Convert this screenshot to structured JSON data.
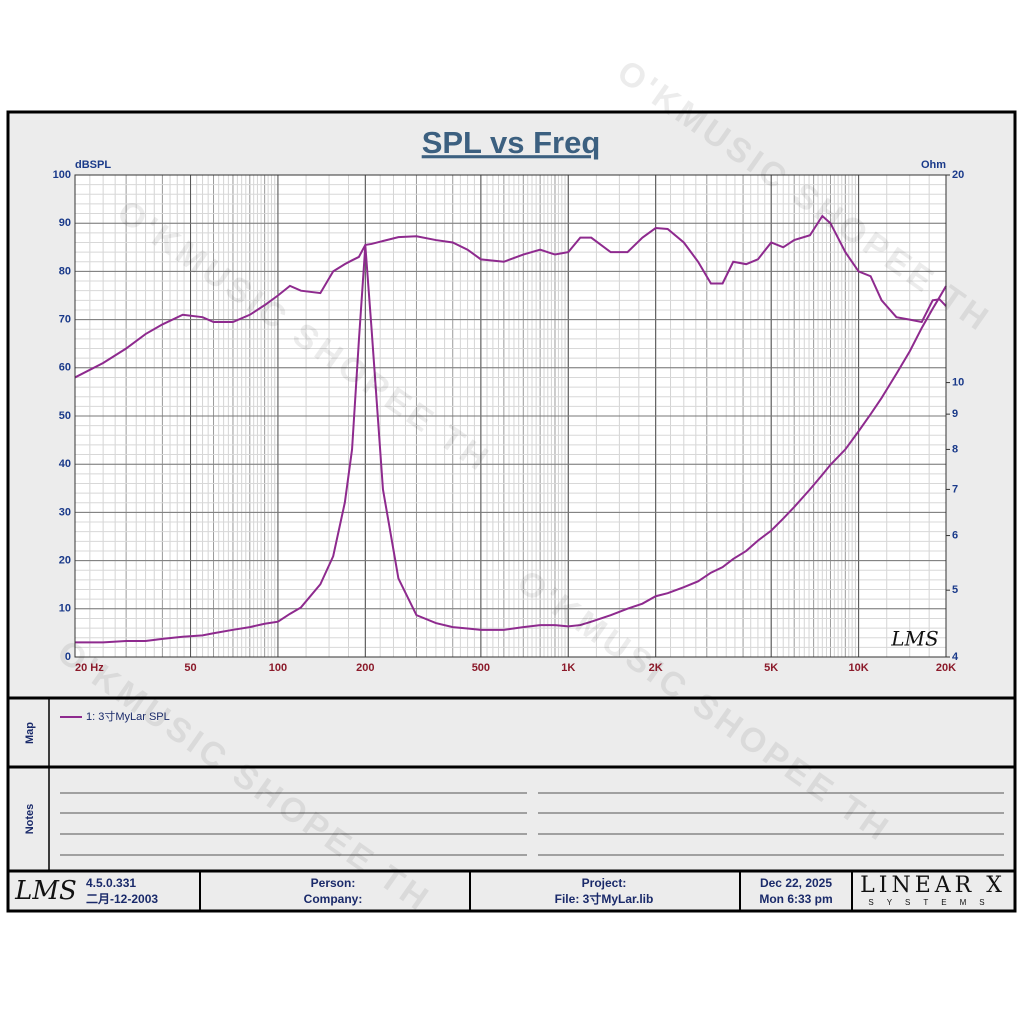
{
  "chart_data": {
    "type": "line",
    "title": "SPL vs Freq",
    "y_label": "dBSPL",
    "y2_label": "Ohm",
    "xlog": true,
    "y2log": true,
    "grid": true,
    "xlim": [
      20,
      20000
    ],
    "ylim": [
      0,
      100
    ],
    "y2lim": [
      4,
      20
    ],
    "xticks": [
      {
        "value": 20,
        "label": "20  Hz"
      },
      50,
      100,
      200,
      500,
      {
        "value": 1000,
        "label": "1K"
      },
      {
        "value": 2000,
        "label": "2K"
      },
      {
        "value": 5000,
        "label": "5K"
      },
      {
        "value": 10000,
        "label": "10K"
      },
      {
        "value": 20000,
        "label": "20K"
      }
    ],
    "yticks": [
      0,
      10,
      20,
      30,
      40,
      50,
      60,
      70,
      80,
      90,
      100
    ],
    "y2ticks": [
      4,
      5,
      6,
      7,
      8,
      9,
      10,
      20
    ],
    "x": [
      20,
      25,
      30,
      35,
      40,
      47,
      55,
      60,
      70,
      80,
      90,
      100,
      110,
      120,
      140,
      155,
      170,
      180,
      190,
      200,
      210,
      230,
      260,
      300,
      350,
      400,
      450,
      500,
      600,
      700,
      800,
      900,
      1000,
      1100,
      1200,
      1400,
      1600,
      1800,
      2000,
      2200,
      2500,
      2800,
      3100,
      3400,
      3700,
      4100,
      4500,
      5000,
      5500,
      6000,
      6800,
      7500,
      8000,
      9000,
      10000,
      11000,
      12000,
      13500,
      15000,
      16500,
      18000,
      19000,
      20000
    ],
    "series": [
      {
        "name": "1: 3寸MyLar SPL",
        "color": "#8e2a8e",
        "values": [
          58,
          61,
          64,
          67,
          69,
          71,
          70.5,
          69.5,
          69.5,
          71,
          73,
          75,
          77,
          76,
          75.5,
          80,
          81.5,
          82.3,
          83,
          85.5,
          85.7,
          86.3,
          87.1,
          87.3,
          86.5,
          86,
          84.5,
          82.5,
          82,
          83.5,
          84.5,
          83.5,
          84,
          87,
          87,
          84,
          84,
          87,
          89,
          88.8,
          86,
          82,
          77.5,
          77.5,
          82,
          81.5,
          82.5,
          86,
          85,
          86.5,
          87.5,
          91.5,
          90,
          84,
          80,
          79,
          74,
          70.5,
          70,
          69.5,
          74,
          74.2,
          72.8
        ]
      },
      {
        "color": "#8e2a8e",
        "axis": "y2",
        "values": [
          4.2,
          4.2,
          4.22,
          4.22,
          4.25,
          4.28,
          4.3,
          4.33,
          4.38,
          4.42,
          4.47,
          4.5,
          4.62,
          4.72,
          5.1,
          5.6,
          6.7,
          8,
          11.5,
          15.8,
          12,
          7,
          5.2,
          4.6,
          4.48,
          4.42,
          4.4,
          4.38,
          4.38,
          4.42,
          4.45,
          4.45,
          4.43,
          4.45,
          4.5,
          4.6,
          4.7,
          4.78,
          4.9,
          4.95,
          5.05,
          5.15,
          5.3,
          5.4,
          5.55,
          5.7,
          5.9,
          6.1,
          6.35,
          6.6,
          7,
          7.35,
          7.6,
          8,
          8.5,
          9,
          9.5,
          10.3,
          11.1,
          12,
          12.8,
          13.3,
          13.8
        ]
      }
    ]
  },
  "logo": "LMS",
  "watermark": "O'KMUSIC SHOPEE TH",
  "sections": {
    "map": "Map",
    "notes": "Notes"
  },
  "footer": {
    "version": "4.5.0.331",
    "date_code": "二月-12-2003",
    "person": "Person:",
    "company": "Company:",
    "project": "Project:",
    "file": "File: 3寸MyLar.lib",
    "date": "Dec 22, 2025",
    "time": "Mon  6:33 pm",
    "brand": "LINEAR X",
    "brand_sub": "SYSTEMS"
  }
}
